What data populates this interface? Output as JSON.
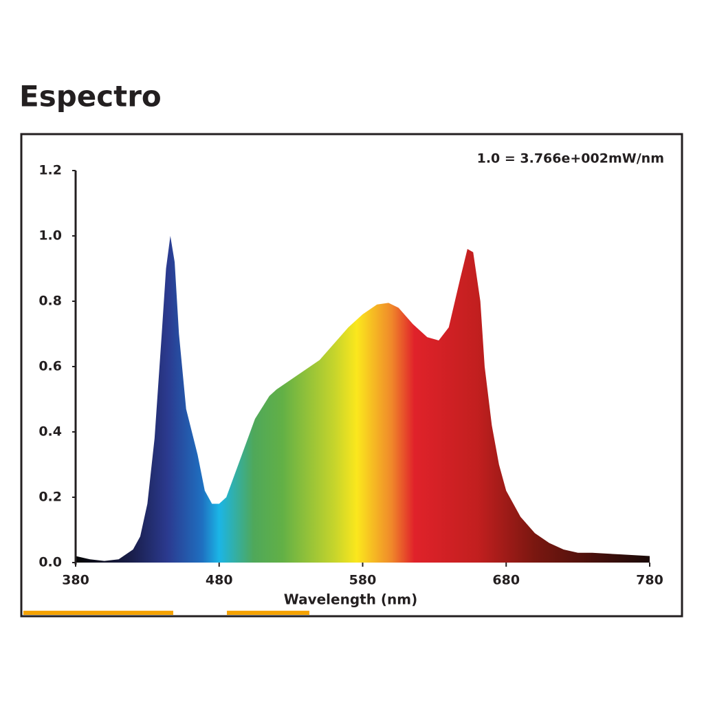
{
  "chart_data": {
    "type": "area",
    "title": "Espectro",
    "annotation": "1.0 = 3.766e+002mW/nm",
    "x_label": "Wavelength (nm)",
    "x": [
      380,
      390,
      400,
      410,
      420,
      425,
      430,
      435,
      440,
      443,
      446,
      449,
      452,
      457,
      465,
      470,
      475,
      480,
      485,
      495,
      505,
      515,
      520,
      530,
      540,
      550,
      560,
      570,
      580,
      590,
      598,
      605,
      615,
      625,
      633,
      640,
      648,
      653,
      657,
      662,
      665,
      670,
      675,
      680,
      690,
      700,
      710,
      720,
      730,
      740,
      760,
      780
    ],
    "values": [
      0.02,
      0.01,
      0.005,
      0.01,
      0.04,
      0.08,
      0.18,
      0.38,
      0.7,
      0.9,
      1.0,
      0.92,
      0.7,
      0.47,
      0.33,
      0.22,
      0.18,
      0.18,
      0.2,
      0.32,
      0.44,
      0.51,
      0.53,
      0.56,
      0.59,
      0.62,
      0.67,
      0.72,
      0.76,
      0.79,
      0.795,
      0.78,
      0.73,
      0.69,
      0.68,
      0.72,
      0.87,
      0.96,
      0.95,
      0.8,
      0.6,
      0.42,
      0.3,
      0.22,
      0.14,
      0.09,
      0.06,
      0.04,
      0.03,
      0.03,
      0.025,
      0.02
    ],
    "xlim": [
      380,
      780
    ],
    "xticks": [
      380,
      480,
      580,
      680,
      780
    ],
    "ylim": [
      0,
      1.2
    ],
    "yticks": [
      {
        "value": 0,
        "label": "0.0"
      },
      {
        "value": 0.2,
        "label": "0.2"
      },
      {
        "value": 0.4,
        "label": "0.4"
      },
      {
        "value": 0.6,
        "label": "0.6"
      },
      {
        "value": 0.8,
        "label": "0.8"
      },
      {
        "value": 1.0,
        "label": "1.0"
      },
      {
        "value": 1.2,
        "label": "1.2"
      }
    ]
  }
}
